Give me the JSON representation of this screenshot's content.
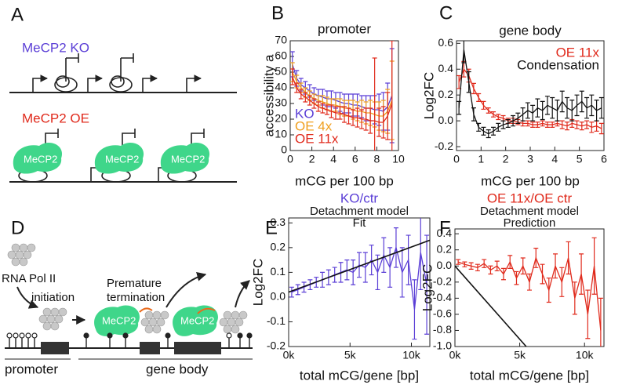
{
  "diagrams": {
    "A": {
      "label": "A",
      "ko": "MeCP2 KO",
      "oe": "MeCP2 OE",
      "protein": "MeCP2"
    },
    "D": {
      "label": "D",
      "pol": "RNA Pol II",
      "initiation": "initiation",
      "termination1": "Premature",
      "termination2": "termination",
      "protein": "MeCP2",
      "promoter": "promoter",
      "gene_body": "gene body"
    }
  },
  "chart_data": [
    {
      "type": "line",
      "label": "B",
      "title": "promoter",
      "xlabel": "mCG per 100 bp",
      "ylabel": "accessibility a",
      "xlim": [
        0,
        10
      ],
      "xticks": [
        0,
        2,
        4,
        6,
        8,
        10
      ],
      "ylim": [
        0,
        70
      ],
      "yticks": [
        0,
        10,
        20,
        30,
        40,
        50,
        60,
        70
      ],
      "legend": "lower left",
      "series": [
        {
          "name": "KO",
          "color": "#5b3fd6",
          "x": [
            0.2,
            0.6,
            1.0,
            1.4,
            1.8,
            2.2,
            2.6,
            3.0,
            3.4,
            3.8,
            4.2,
            4.6,
            5.0,
            5.4,
            5.8,
            6.2,
            6.6,
            7.0,
            7.4,
            7.8,
            8.2,
            8.6,
            9.0,
            9.4
          ],
          "values": [
            55,
            46,
            42,
            40,
            38,
            36,
            35,
            34,
            33,
            33,
            32,
            31,
            30,
            30,
            29,
            29,
            28,
            27,
            27,
            26,
            26,
            25,
            28,
            35
          ],
          "errors": [
            8,
            5,
            4,
            4,
            4,
            4,
            4,
            5,
            5,
            5,
            5,
            6,
            6,
            6,
            7,
            7,
            7,
            8,
            8,
            9,
            10,
            12,
            15,
            30
          ]
        },
        {
          "name": "OE 4x",
          "color": "#f0a020",
          "x": [
            0.2,
            0.6,
            1.0,
            1.4,
            1.8,
            2.2,
            2.6,
            3.0,
            3.4,
            3.8,
            4.2,
            4.6,
            5.0,
            5.4,
            5.8,
            6.2,
            6.6,
            7.0,
            7.4,
            7.8,
            8.2,
            8.6,
            9.0,
            9.4
          ],
          "values": [
            50,
            44,
            40,
            37,
            35,
            33,
            32,
            31,
            30,
            29,
            29,
            28,
            27,
            27,
            26,
            25,
            25,
            24,
            24,
            23,
            22,
            22,
            25,
            32
          ],
          "errors": [
            6,
            4,
            3,
            3,
            3,
            3,
            3,
            4,
            4,
            4,
            4,
            5,
            5,
            5,
            6,
            6,
            7,
            7,
            8,
            8,
            9,
            10,
            14,
            25
          ]
        },
        {
          "name": "OE 11x",
          "color": "#e02a1c",
          "x": [
            0.2,
            0.6,
            1.0,
            1.4,
            1.8,
            2.2,
            2.6,
            3.0,
            3.4,
            3.8,
            4.2,
            4.6,
            5.0,
            5.4,
            5.8,
            6.2,
            6.6,
            7.0,
            7.4,
            7.8,
            8.2,
            8.6,
            9.0,
            9.4
          ],
          "values": [
            47,
            40,
            36,
            34,
            32,
            30,
            28,
            27,
            26,
            25,
            24,
            24,
            23,
            22,
            21,
            21,
            20,
            20,
            19,
            19,
            18,
            18,
            22,
            30
          ],
          "errors": [
            5,
            3,
            3,
            3,
            3,
            3,
            3,
            3,
            3,
            4,
            4,
            4,
            5,
            5,
            5,
            6,
            6,
            7,
            8,
            40,
            9,
            10,
            15,
            40
          ]
        }
      ]
    },
    {
      "type": "line",
      "label": "C",
      "title": "gene body",
      "xlabel": "mCG per 100 bp",
      "ylabel": "Log2FC",
      "xlim": [
        0,
        6
      ],
      "xticks": [
        0,
        1,
        2,
        3,
        4,
        5,
        6
      ],
      "ylim": [
        -0.23,
        0.62
      ],
      "yticks": [
        -0.2,
        {
          "value": 0,
          "label": "0.0"
        },
        0.2,
        0.4,
        0.6
      ],
      "legend": "upper right",
      "series": [
        {
          "name": "OE 11x",
          "color": "#e02a1c",
          "x": [
            0.1,
            0.3,
            0.5,
            0.7,
            0.9,
            1.1,
            1.3,
            1.5,
            1.7,
            1.9,
            2.1,
            2.3,
            2.5,
            2.7,
            2.9,
            3.1,
            3.3,
            3.5,
            3.7,
            3.9,
            4.1,
            4.3,
            4.5,
            4.7,
            4.9,
            5.1,
            5.3,
            5.5,
            5.7,
            5.9
          ],
          "values": [
            0.3,
            0.4,
            0.35,
            0.25,
            0.18,
            0.12,
            0.08,
            0.05,
            0.03,
            0.02,
            0.0,
            0.0,
            -0.01,
            -0.02,
            -0.02,
            -0.03,
            -0.03,
            -0.02,
            -0.03,
            -0.03,
            -0.02,
            -0.03,
            -0.04,
            -0.02,
            -0.03,
            -0.04,
            -0.03,
            -0.05,
            -0.04,
            -0.06
          ],
          "errors": [
            0.05,
            0.06,
            0.05,
            0.04,
            0.03,
            0.03,
            0.02,
            0.02,
            0.02,
            0.02,
            0.02,
            0.02,
            0.02,
            0.02,
            0.02,
            0.02,
            0.02,
            0.02,
            0.02,
            0.02,
            0.02,
            0.03,
            0.03,
            0.03,
            0.03,
            0.03,
            0.03,
            0.04,
            0.04,
            0.04
          ]
        },
        {
          "name": "Condensation",
          "color": "#111111",
          "x": [
            0.1,
            0.3,
            0.5,
            0.7,
            0.9,
            1.1,
            1.3,
            1.5,
            1.7,
            1.9,
            2.1,
            2.3,
            2.5,
            2.7,
            2.9,
            3.1,
            3.3,
            3.5,
            3.7,
            3.9,
            4.1,
            4.3,
            4.5,
            4.7,
            4.9,
            5.1,
            5.3,
            5.5,
            5.7,
            5.9
          ],
          "values": [
            0.1,
            0.55,
            0.3,
            0.05,
            -0.05,
            -0.08,
            -0.1,
            -0.08,
            -0.05,
            -0.03,
            -0.02,
            0.0,
            0.02,
            0.05,
            0.08,
            0.06,
            0.1,
            0.08,
            0.12,
            0.1,
            0.08,
            0.15,
            0.1,
            0.08,
            0.12,
            0.15,
            0.1,
            0.12,
            0.08,
            0.1
          ],
          "errors": [
            0.05,
            0.1,
            0.08,
            0.05,
            0.03,
            0.03,
            0.03,
            0.03,
            0.03,
            0.03,
            0.03,
            0.04,
            0.04,
            0.05,
            0.06,
            0.06,
            0.07,
            0.07,
            0.07,
            0.08,
            0.08,
            0.08,
            0.08,
            0.08,
            0.08,
            0.08,
            0.08,
            0.08,
            0.08,
            0.08
          ]
        }
      ]
    },
    {
      "type": "line",
      "label": "E",
      "title": "Detachment model",
      "xlabel": "total mCG/gene [bp]",
      "ylabel": "Log2FC",
      "xlim": [
        0,
        11500
      ],
      "xticks": [
        {
          "value": 0,
          "label": "0k"
        },
        {
          "value": 5000,
          "label": "5k"
        },
        {
          "value": 10000,
          "label": "10k"
        }
      ],
      "ylim": [
        -0.2,
        0.32
      ],
      "yticks": [
        -0.2,
        -0.1,
        {
          "value": 0,
          "label": "0.0"
        },
        0.1,
        0.2,
        0.3
      ],
      "legend": "top",
      "series": [
        {
          "name": "KO/ctr",
          "color": "#5b3fd6",
          "x": [
            250,
            750,
            1250,
            1750,
            2250,
            2750,
            3250,
            3750,
            4250,
            4750,
            5250,
            5750,
            6250,
            6750,
            7250,
            7750,
            8250,
            8750,
            9250,
            9750,
            10250,
            10750,
            11250
          ],
          "values": [
            0.02,
            0.03,
            0.04,
            0.05,
            0.06,
            0.07,
            0.08,
            0.09,
            0.1,
            0.11,
            0.1,
            0.13,
            0.12,
            0.15,
            0.1,
            0.17,
            0.12,
            0.2,
            0.1,
            0.15,
            -0.05,
            0.18,
            0.05
          ],
          "errors": [
            0.02,
            0.02,
            0.02,
            0.02,
            0.02,
            0.03,
            0.03,
            0.03,
            0.04,
            0.04,
            0.05,
            0.05,
            0.06,
            0.06,
            0.07,
            0.07,
            0.08,
            0.08,
            0.1,
            0.1,
            0.12,
            0.15,
            0.2
          ]
        },
        {
          "name": "Fit",
          "color": "#111111",
          "x": [
            0,
            11500
          ],
          "values": [
            0.02,
            0.23
          ]
        }
      ]
    },
    {
      "type": "line",
      "label": "F",
      "title": "Detachment model",
      "xlabel": "total mCG/gene [bp]",
      "ylabel": "Log2FC",
      "xlim": [
        0,
        11500
      ],
      "xticks": [
        {
          "value": 0,
          "label": "0k"
        },
        {
          "value": 5000,
          "label": "5k"
        },
        {
          "value": 10000,
          "label": "10k"
        }
      ],
      "ylim": [
        -1.0,
        0.46
      ],
      "yticks": [
        {
          "value": -1.0,
          "label": "-1.0"
        },
        -0.8,
        -0.6,
        -0.4,
        -0.2,
        {
          "value": 0,
          "label": "0.0"
        },
        0.2,
        0.4
      ],
      "legend": "top",
      "series": [
        {
          "name": "OE 11x/OE ctr",
          "color": "#e02a1c",
          "x": [
            250,
            750,
            1250,
            1750,
            2250,
            2750,
            3250,
            3750,
            4250,
            4750,
            5250,
            5750,
            6250,
            6750,
            7250,
            7750,
            8250,
            8750,
            9250,
            9750,
            10250,
            10750,
            11250
          ],
          "values": [
            0.05,
            0.02,
            0.0,
            -0.02,
            0.03,
            -0.05,
            0.0,
            -0.1,
            0.05,
            -0.15,
            0.0,
            -0.2,
            0.1,
            -0.1,
            -0.3,
            0.0,
            -0.2,
            0.1,
            -0.4,
            -0.1,
            -0.6,
            0.0,
            -0.8
          ],
          "errors": [
            0.03,
            0.03,
            0.04,
            0.04,
            0.05,
            0.05,
            0.06,
            0.07,
            0.08,
            0.08,
            0.1,
            0.1,
            0.12,
            0.12,
            0.15,
            0.15,
            0.18,
            0.2,
            0.2,
            0.25,
            0.3,
            0.35,
            0.4
          ]
        },
        {
          "name": "Prediction",
          "color": "#111111",
          "x": [
            0,
            5500
          ],
          "values": [
            0,
            -1.0
          ]
        }
      ]
    }
  ]
}
